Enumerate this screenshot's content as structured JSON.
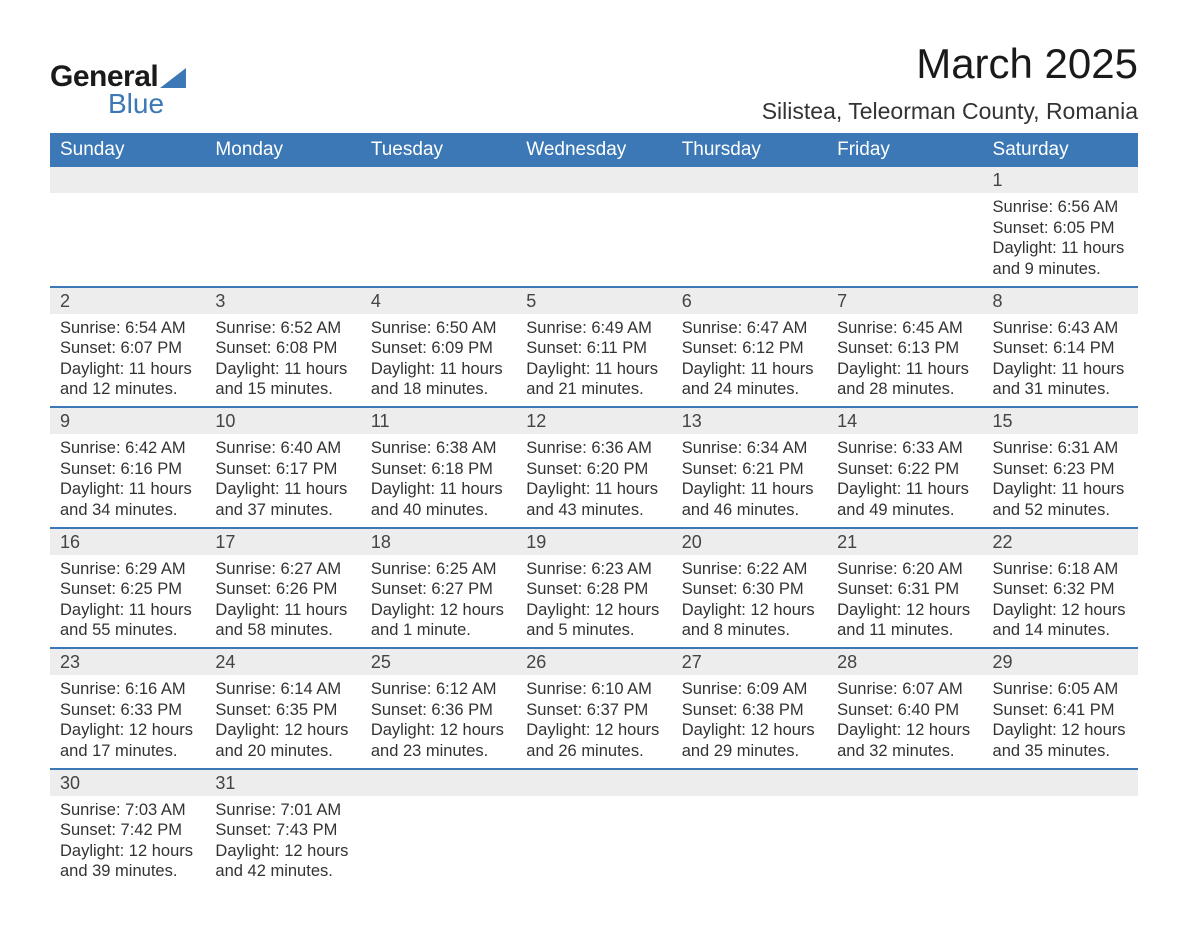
{
  "logo": {
    "word1": "General",
    "word2": "Blue",
    "text_color": "#1a1a1a",
    "accent_color": "#3b78b5"
  },
  "title": "March 2025",
  "location": "Silistea, Teleorman County, Romania",
  "colors": {
    "header_bg": "#3b78b5",
    "header_text": "#ffffff",
    "daynum_bg": "#ededed",
    "row_border": "#3b78b5",
    "body_text": "#333333",
    "page_bg": "#ffffff"
  },
  "weekdays": [
    "Sunday",
    "Monday",
    "Tuesday",
    "Wednesday",
    "Thursday",
    "Friday",
    "Saturday"
  ],
  "weeks": [
    [
      null,
      null,
      null,
      null,
      null,
      null,
      {
        "n": "1",
        "sr": "Sunrise: 6:56 AM",
        "ss": "Sunset: 6:05 PM",
        "d1": "Daylight: 11 hours",
        "d2": "and 9 minutes."
      }
    ],
    [
      {
        "n": "2",
        "sr": "Sunrise: 6:54 AM",
        "ss": "Sunset: 6:07 PM",
        "d1": "Daylight: 11 hours",
        "d2": "and 12 minutes."
      },
      {
        "n": "3",
        "sr": "Sunrise: 6:52 AM",
        "ss": "Sunset: 6:08 PM",
        "d1": "Daylight: 11 hours",
        "d2": "and 15 minutes."
      },
      {
        "n": "4",
        "sr": "Sunrise: 6:50 AM",
        "ss": "Sunset: 6:09 PM",
        "d1": "Daylight: 11 hours",
        "d2": "and 18 minutes."
      },
      {
        "n": "5",
        "sr": "Sunrise: 6:49 AM",
        "ss": "Sunset: 6:11 PM",
        "d1": "Daylight: 11 hours",
        "d2": "and 21 minutes."
      },
      {
        "n": "6",
        "sr": "Sunrise: 6:47 AM",
        "ss": "Sunset: 6:12 PM",
        "d1": "Daylight: 11 hours",
        "d2": "and 24 minutes."
      },
      {
        "n": "7",
        "sr": "Sunrise: 6:45 AM",
        "ss": "Sunset: 6:13 PM",
        "d1": "Daylight: 11 hours",
        "d2": "and 28 minutes."
      },
      {
        "n": "8",
        "sr": "Sunrise: 6:43 AM",
        "ss": "Sunset: 6:14 PM",
        "d1": "Daylight: 11 hours",
        "d2": "and 31 minutes."
      }
    ],
    [
      {
        "n": "9",
        "sr": "Sunrise: 6:42 AM",
        "ss": "Sunset: 6:16 PM",
        "d1": "Daylight: 11 hours",
        "d2": "and 34 minutes."
      },
      {
        "n": "10",
        "sr": "Sunrise: 6:40 AM",
        "ss": "Sunset: 6:17 PM",
        "d1": "Daylight: 11 hours",
        "d2": "and 37 minutes."
      },
      {
        "n": "11",
        "sr": "Sunrise: 6:38 AM",
        "ss": "Sunset: 6:18 PM",
        "d1": "Daylight: 11 hours",
        "d2": "and 40 minutes."
      },
      {
        "n": "12",
        "sr": "Sunrise: 6:36 AM",
        "ss": "Sunset: 6:20 PM",
        "d1": "Daylight: 11 hours",
        "d2": "and 43 minutes."
      },
      {
        "n": "13",
        "sr": "Sunrise: 6:34 AM",
        "ss": "Sunset: 6:21 PM",
        "d1": "Daylight: 11 hours",
        "d2": "and 46 minutes."
      },
      {
        "n": "14",
        "sr": "Sunrise: 6:33 AM",
        "ss": "Sunset: 6:22 PM",
        "d1": "Daylight: 11 hours",
        "d2": "and 49 minutes."
      },
      {
        "n": "15",
        "sr": "Sunrise: 6:31 AM",
        "ss": "Sunset: 6:23 PM",
        "d1": "Daylight: 11 hours",
        "d2": "and 52 minutes."
      }
    ],
    [
      {
        "n": "16",
        "sr": "Sunrise: 6:29 AM",
        "ss": "Sunset: 6:25 PM",
        "d1": "Daylight: 11 hours",
        "d2": "and 55 minutes."
      },
      {
        "n": "17",
        "sr": "Sunrise: 6:27 AM",
        "ss": "Sunset: 6:26 PM",
        "d1": "Daylight: 11 hours",
        "d2": "and 58 minutes."
      },
      {
        "n": "18",
        "sr": "Sunrise: 6:25 AM",
        "ss": "Sunset: 6:27 PM",
        "d1": "Daylight: 12 hours",
        "d2": "and 1 minute."
      },
      {
        "n": "19",
        "sr": "Sunrise: 6:23 AM",
        "ss": "Sunset: 6:28 PM",
        "d1": "Daylight: 12 hours",
        "d2": "and 5 minutes."
      },
      {
        "n": "20",
        "sr": "Sunrise: 6:22 AM",
        "ss": "Sunset: 6:30 PM",
        "d1": "Daylight: 12 hours",
        "d2": "and 8 minutes."
      },
      {
        "n": "21",
        "sr": "Sunrise: 6:20 AM",
        "ss": "Sunset: 6:31 PM",
        "d1": "Daylight: 12 hours",
        "d2": "and 11 minutes."
      },
      {
        "n": "22",
        "sr": "Sunrise: 6:18 AM",
        "ss": "Sunset: 6:32 PM",
        "d1": "Daylight: 12 hours",
        "d2": "and 14 minutes."
      }
    ],
    [
      {
        "n": "23",
        "sr": "Sunrise: 6:16 AM",
        "ss": "Sunset: 6:33 PM",
        "d1": "Daylight: 12 hours",
        "d2": "and 17 minutes."
      },
      {
        "n": "24",
        "sr": "Sunrise: 6:14 AM",
        "ss": "Sunset: 6:35 PM",
        "d1": "Daylight: 12 hours",
        "d2": "and 20 minutes."
      },
      {
        "n": "25",
        "sr": "Sunrise: 6:12 AM",
        "ss": "Sunset: 6:36 PM",
        "d1": "Daylight: 12 hours",
        "d2": "and 23 minutes."
      },
      {
        "n": "26",
        "sr": "Sunrise: 6:10 AM",
        "ss": "Sunset: 6:37 PM",
        "d1": "Daylight: 12 hours",
        "d2": "and 26 minutes."
      },
      {
        "n": "27",
        "sr": "Sunrise: 6:09 AM",
        "ss": "Sunset: 6:38 PM",
        "d1": "Daylight: 12 hours",
        "d2": "and 29 minutes."
      },
      {
        "n": "28",
        "sr": "Sunrise: 6:07 AM",
        "ss": "Sunset: 6:40 PM",
        "d1": "Daylight: 12 hours",
        "d2": "and 32 minutes."
      },
      {
        "n": "29",
        "sr": "Sunrise: 6:05 AM",
        "ss": "Sunset: 6:41 PM",
        "d1": "Daylight: 12 hours",
        "d2": "and 35 minutes."
      }
    ],
    [
      {
        "n": "30",
        "sr": "Sunrise: 7:03 AM",
        "ss": "Sunset: 7:42 PM",
        "d1": "Daylight: 12 hours",
        "d2": "and 39 minutes."
      },
      {
        "n": "31",
        "sr": "Sunrise: 7:01 AM",
        "ss": "Sunset: 7:43 PM",
        "d1": "Daylight: 12 hours",
        "d2": "and 42 minutes."
      },
      null,
      null,
      null,
      null,
      null
    ]
  ]
}
